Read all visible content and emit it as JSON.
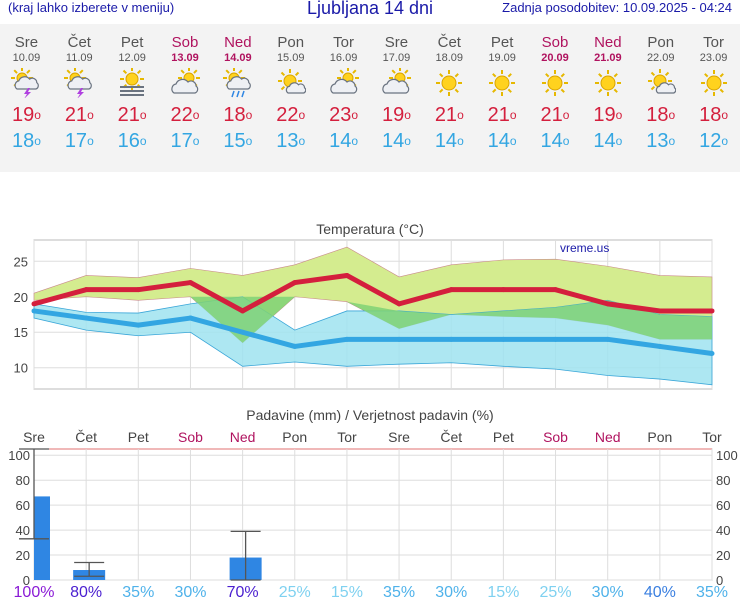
{
  "header": {
    "menu_hint": "(kraj lahko izberete v meniju)",
    "title": "Ljubljana 14 dni",
    "updated": "Zadnja posodobitev: 10.09.2025 - 04:24"
  },
  "days": [
    {
      "name": "Sre",
      "date": "10.09",
      "weekend": false,
      "icon": "thunderstorm-sun-icon",
      "tmax": "19",
      "tmin": "18"
    },
    {
      "name": "Čet",
      "date": "11.09",
      "weekend": false,
      "icon": "thunderstorm-sun-icon",
      "tmax": "21",
      "tmin": "17"
    },
    {
      "name": "Pet",
      "date": "12.09",
      "weekend": false,
      "icon": "fog-sun-icon",
      "tmax": "21",
      "tmin": "16"
    },
    {
      "name": "Sob",
      "date": "13.09",
      "weekend": true,
      "icon": "partly-cloudy-icon",
      "tmax": "22",
      "tmin": "17"
    },
    {
      "name": "Ned",
      "date": "14.09",
      "weekend": true,
      "icon": "rain-sun-icon",
      "tmax": "18",
      "tmin": "15"
    },
    {
      "name": "Pon",
      "date": "15.09",
      "weekend": false,
      "icon": "mostly-sunny-icon",
      "tmax": "22",
      "tmin": "13"
    },
    {
      "name": "Tor",
      "date": "16.09",
      "weekend": false,
      "icon": "partly-cloudy-icon",
      "tmax": "23",
      "tmin": "14"
    },
    {
      "name": "Sre",
      "date": "17.09",
      "weekend": false,
      "icon": "partly-cloudy-icon",
      "tmax": "19",
      "tmin": "14"
    },
    {
      "name": "Čet",
      "date": "18.09",
      "weekend": false,
      "icon": "sun-icon",
      "tmax": "21",
      "tmin": "14"
    },
    {
      "name": "Pet",
      "date": "19.09",
      "weekend": false,
      "icon": "sun-icon",
      "tmax": "21",
      "tmin": "14"
    },
    {
      "name": "Sob",
      "date": "20.09",
      "weekend": true,
      "icon": "sun-icon",
      "tmax": "21",
      "tmin": "14"
    },
    {
      "name": "Ned",
      "date": "21.09",
      "weekend": true,
      "icon": "sun-icon",
      "tmax": "19",
      "tmin": "14"
    },
    {
      "name": "Pon",
      "date": "22.09",
      "weekend": false,
      "icon": "mostly-sunny-icon",
      "tmax": "18",
      "tmin": "13"
    },
    {
      "name": "Tor",
      "date": "23.09",
      "weekend": false,
      "icon": "sun-icon",
      "tmax": "18",
      "tmin": "12"
    }
  ],
  "degree_symbol": "o",
  "colors": {
    "max": "#d41f3d",
    "min": "#33a6e2",
    "weekend": "#b0135f",
    "bar": "#2f86e3",
    "max_band": "#d4ec8f",
    "min_band": "#9fe3f0",
    "overlap": "#7fd276",
    "title": "#1a1aa8"
  },
  "chart_data": [
    {
      "type": "line",
      "title": "Temperatura (°C)",
      "watermark": "vreme.us",
      "x": [
        "10.09",
        "11.09",
        "12.09",
        "13.09",
        "14.09",
        "15.09",
        "16.09",
        "17.09",
        "18.09",
        "19.09",
        "20.09",
        "21.09",
        "22.09",
        "23.09"
      ],
      "ylim": [
        7,
        28
      ],
      "yticks": [
        10,
        15,
        20,
        25
      ],
      "grid": true,
      "series": [
        {
          "role": "max",
          "values": [
            19,
            21,
            21,
            22,
            18,
            22,
            23,
            19,
            21,
            21,
            21,
            19,
            18,
            18
          ]
        },
        {
          "role": "min",
          "values": [
            18,
            17,
            16,
            17,
            15,
            13,
            14,
            14,
            14,
            14,
            14,
            14,
            13,
            12
          ]
        }
      ],
      "max_band": {
        "upper": [
          20.5,
          23,
          22.7,
          24,
          23,
          24.5,
          27,
          22.8,
          24.5,
          25.2,
          25.3,
          24.3,
          23,
          22.8
        ],
        "lower": [
          19.5,
          20,
          19.5,
          20,
          13.5,
          20,
          19.3,
          15.5,
          17.5,
          17.2,
          17,
          16,
          14,
          14
        ]
      },
      "min_band": {
        "upper": [
          19,
          17.8,
          17.7,
          19,
          20,
          15.3,
          18,
          18,
          17.5,
          18,
          18.5,
          19.5,
          17.5,
          17.2
        ],
        "lower": [
          17,
          15.3,
          14.5,
          15,
          10.2,
          10.8,
          10.2,
          10.5,
          10.7,
          10.2,
          9.8,
          8.9,
          8.4,
          7.6
        ]
      }
    },
    {
      "type": "bar",
      "title": "Padavine (mm) / Verjetnost padavin (%)",
      "categories": [
        "Sre",
        "Čet",
        "Pet",
        "Sob",
        "Ned",
        "Pon",
        "Tor",
        "Sre",
        "Čet",
        "Pet",
        "Sob",
        "Ned",
        "Pon",
        "Tor"
      ],
      "weekend": [
        false,
        false,
        false,
        true,
        true,
        false,
        false,
        false,
        false,
        false,
        true,
        true,
        false,
        false
      ],
      "ylim": [
        0,
        105
      ],
      "yticks": [
        0,
        20,
        40,
        60,
        80,
        100
      ],
      "values": [
        67,
        8,
        0,
        0,
        18,
        0,
        0,
        0,
        0,
        0,
        0,
        0,
        0,
        0
      ],
      "error_low": [
        33,
        3,
        null,
        null,
        0,
        null,
        null,
        null,
        null,
        null,
        null,
        null,
        null,
        null
      ],
      "error_high": [
        108,
        14,
        null,
        null,
        39,
        null,
        null,
        null,
        null,
        null,
        null,
        null,
        null,
        null
      ],
      "probability": [
        "100%",
        "80%",
        "35%",
        "30%",
        "70%",
        "25%",
        "15%",
        "35%",
        "30%",
        "15%",
        "25%",
        "30%",
        "40%",
        "35%"
      ]
    }
  ]
}
